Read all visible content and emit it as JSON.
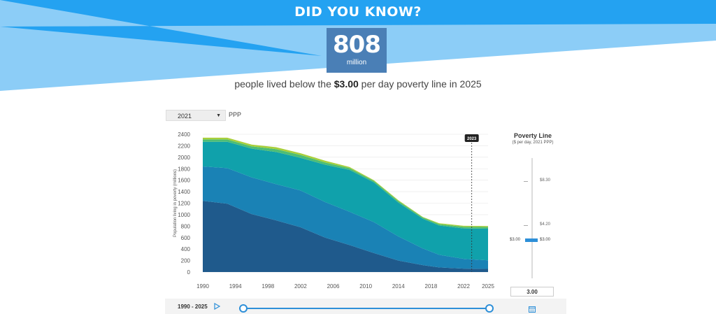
{
  "banner": {
    "headline": "DID YOU KNOW?",
    "stat_value": "808",
    "stat_unit": "million",
    "caption_before": "people lived below the ",
    "caption_bold": "$3.00",
    "caption_after": " per day poverty line in 2025",
    "colors": {
      "primary": "#24a2f1",
      "light": "#8ccdf7",
      "stat_box": "#4a7fb6"
    }
  },
  "controls": {
    "ppp_select_value": "2021",
    "ppp_label": "PPP",
    "range_label": "1990 - 2025",
    "icons": [
      "play-icon",
      "calendar-icon",
      "chevron-down-icon"
    ]
  },
  "poverty_line": {
    "title": "Poverty Line",
    "subtitle": "($ per day, 2021 PPP)",
    "ticks": [
      "$8.30",
      "$4.20",
      "$3.00"
    ],
    "current_label": "$3.00",
    "input_value": "3.00"
  },
  "chart_data": {
    "type": "area",
    "ylabel": "Population living in poverty (millions)",
    "xlabel": "",
    "ylim": [
      0,
      2400
    ],
    "yticks": [
      0,
      200,
      400,
      600,
      800,
      1000,
      1200,
      1400,
      1600,
      1800,
      2000,
      2200,
      2400
    ],
    "xlim": [
      1990,
      2025
    ],
    "xticks": [
      1990,
      1994,
      1998,
      2002,
      2006,
      2010,
      2014,
      2018,
      2022,
      2025
    ],
    "marker": {
      "x": 2023,
      "label": "2023"
    },
    "grid": true,
    "x": [
      1990,
      1993,
      1996,
      1999,
      2002,
      2005,
      2008,
      2011,
      2014,
      2017,
      2019,
      2022,
      2025
    ],
    "series": [
      {
        "color": "#1f5a8c",
        "values": [
          1240,
          1190,
          1010,
          900,
          780,
          600,
          470,
          330,
          200,
          120,
          80,
          60,
          55
        ]
      },
      {
        "color": "#1a82b5",
        "values": [
          600,
          620,
          640,
          630,
          640,
          620,
          580,
          540,
          420,
          290,
          220,
          170,
          150
        ]
      },
      {
        "color": "#10a1ab",
        "values": [
          430,
          460,
          500,
          560,
          570,
          650,
          730,
          690,
          590,
          520,
          510,
          530,
          550
        ]
      },
      {
        "color": "#4ebd75",
        "values": [
          40,
          40,
          40,
          50,
          50,
          40,
          30,
          25,
          25,
          20,
          25,
          30,
          30
        ]
      },
      {
        "color": "#a8cf3b",
        "values": [
          30,
          30,
          30,
          35,
          30,
          30,
          20,
          15,
          15,
          10,
          15,
          15,
          15
        ]
      }
    ],
    "range_start": 1990,
    "range_end": 2025
  }
}
